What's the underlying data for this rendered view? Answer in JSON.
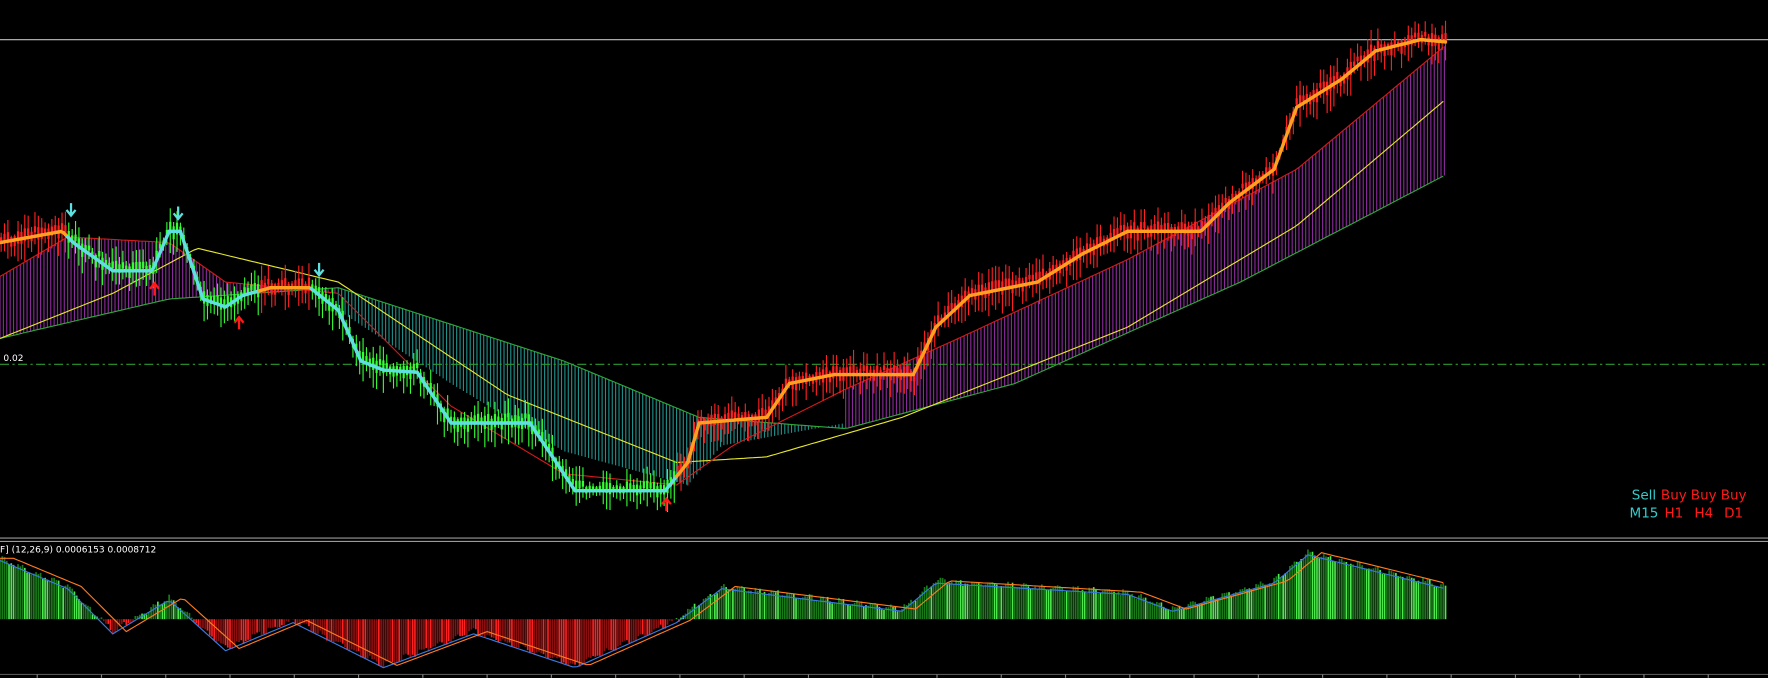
{
  "price_label": "0.02",
  "macd_label": "F] (12,26,9) 0.0006153 0.0008712",
  "signals": [
    {
      "signal": "Sell",
      "timeframe": "M15",
      "color": "#33cccc"
    },
    {
      "signal": "Buy",
      "timeframe": "H1",
      "color": "#ff1a1a"
    },
    {
      "signal": "Buy",
      "timeframe": "H4",
      "color": "#ff1a1a"
    },
    {
      "signal": "Buy",
      "timeframe": "D1",
      "color": "#ff1a1a"
    }
  ]
}
